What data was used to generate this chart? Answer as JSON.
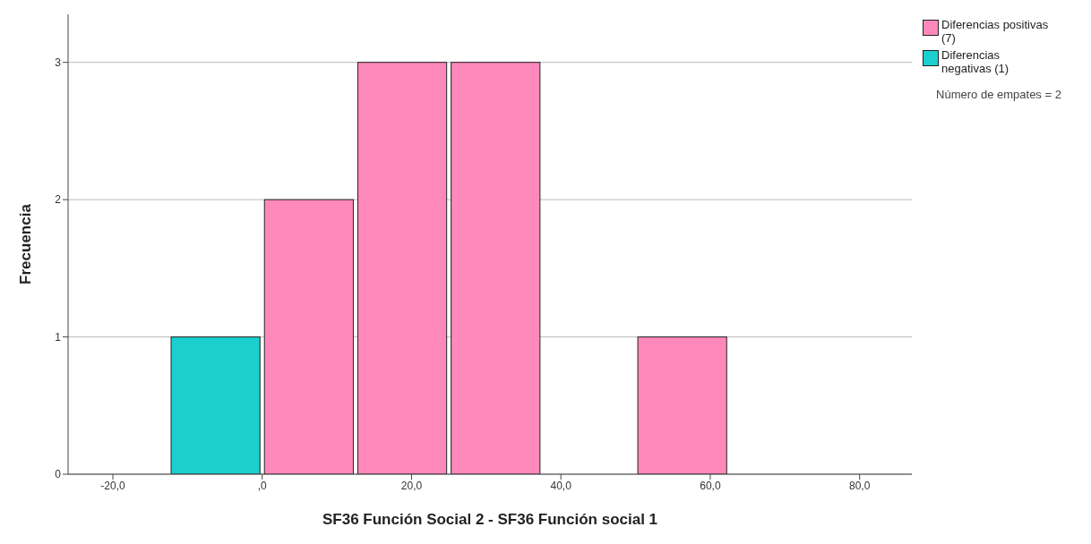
{
  "chart_data": {
    "type": "histogram",
    "xlabel": "SF36 Función Social 2 - SF36 Función social 1",
    "ylabel": "Frecuencia",
    "bins": [
      -12.5,
      0,
      12.5,
      25,
      37.5,
      50,
      62.5
    ],
    "series": [
      {
        "name": "Diferencias positivas (7)",
        "color": "#ff88bb",
        "values": [
          null,
          2,
          3,
          3,
          0,
          1
        ]
      },
      {
        "name": "Diferencias negativas (1)",
        "color": "#1ccfcf",
        "values": [
          1,
          null,
          null,
          null,
          null,
          null
        ]
      }
    ],
    "xlim": [
      -26,
      87
    ],
    "xticks": [
      {
        "value": -20,
        "label": "-20,0"
      },
      {
        "value": 0,
        "label": ",0"
      },
      {
        "value": 20,
        "label": "20,0"
      },
      {
        "value": 40,
        "label": "40,0"
      },
      {
        "value": 60,
        "label": "60,0"
      },
      {
        "value": 80,
        "label": "80,0"
      }
    ],
    "ylim": [
      0,
      3.35
    ],
    "yticks": [
      0,
      1,
      2,
      3
    ],
    "grid": "y",
    "legend": "top right",
    "annotations": [
      "Número de empates = 2"
    ]
  }
}
